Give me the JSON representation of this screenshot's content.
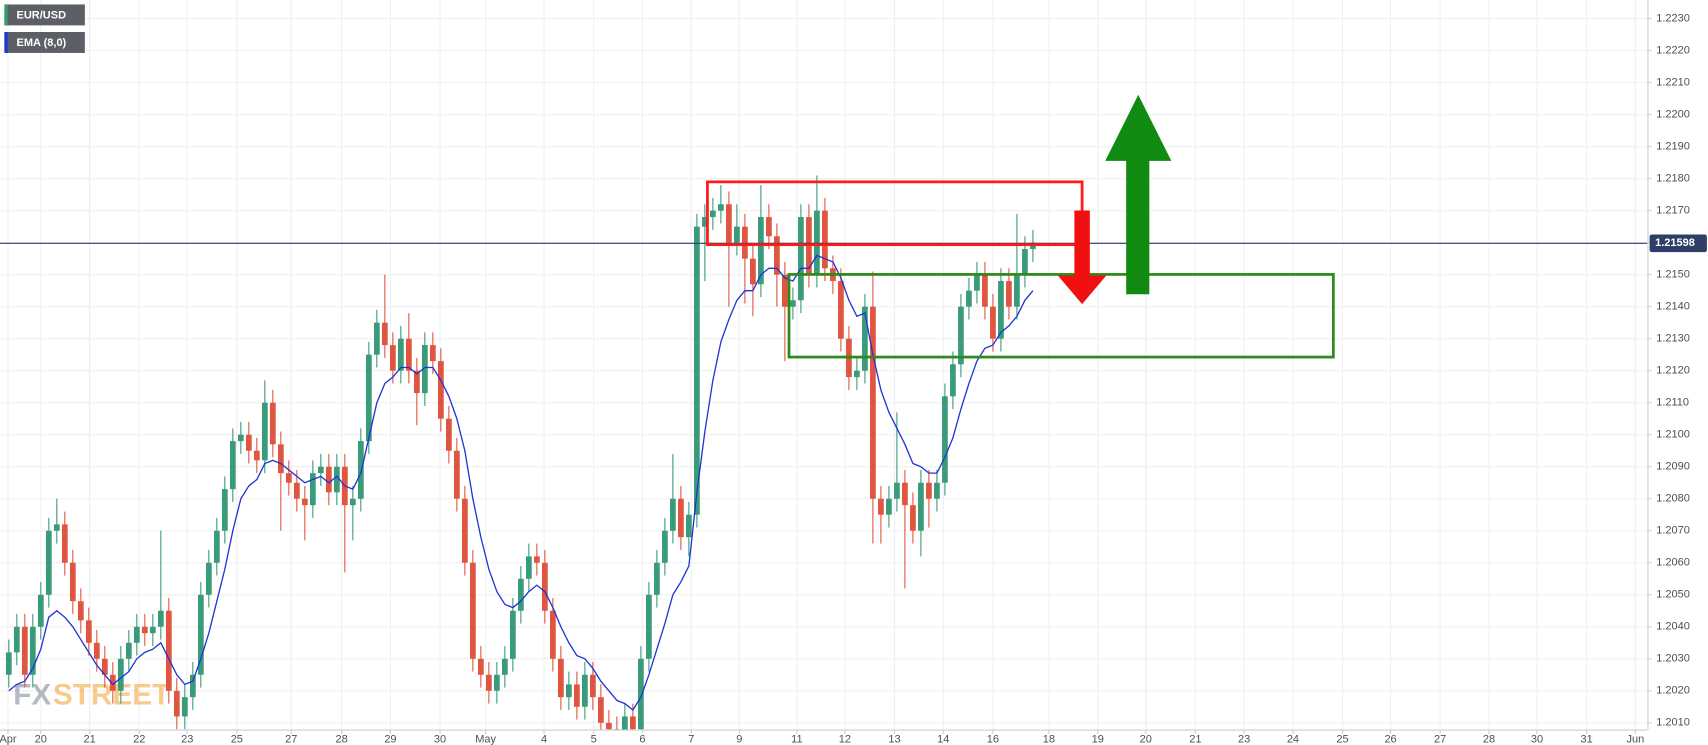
{
  "chart_data": {
    "type": "candlestick",
    "watermark": [
      "FX",
      "STREET"
    ],
    "grid": true,
    "last_price": 1.21598,
    "xlim": [
      -1.1,
      204.8
    ],
    "xticks": [
      {
        "value": -0.1,
        "label": "Apr"
      },
      {
        "value": 4.0,
        "label": "20"
      },
      {
        "value": 10.1,
        "label": "21"
      },
      {
        "value": 16.3,
        "label": "22"
      },
      {
        "value": 22.3,
        "label": "23"
      },
      {
        "value": 28.5,
        "label": "25"
      },
      {
        "value": 35.3,
        "label": "27"
      },
      {
        "value": 41.6,
        "label": "28"
      },
      {
        "value": 47.7,
        "label": "29"
      },
      {
        "value": 53.9,
        "label": "30"
      },
      {
        "value": 59.6,
        "label": "May"
      },
      {
        "value": 66.9,
        "label": "4"
      },
      {
        "value": 73.1,
        "label": "5"
      },
      {
        "value": 79.2,
        "label": "6"
      },
      {
        "value": 85.3,
        "label": "7"
      },
      {
        "value": 91.3,
        "label": "9"
      },
      {
        "value": 98.5,
        "label": "11"
      },
      {
        "value": 104.5,
        "label": "12"
      },
      {
        "value": 110.7,
        "label": "13"
      },
      {
        "value": 116.8,
        "label": "14"
      },
      {
        "value": 123.0,
        "label": "16"
      },
      {
        "value": 130.0,
        "label": "18"
      },
      {
        "value": 136.1,
        "label": "19"
      },
      {
        "value": 142.1,
        "label": "20"
      },
      {
        "value": 148.3,
        "label": "21"
      },
      {
        "value": 154.4,
        "label": "23"
      },
      {
        "value": 160.5,
        "label": "24"
      },
      {
        "value": 166.7,
        "label": "25"
      },
      {
        "value": 172.7,
        "label": "26"
      },
      {
        "value": 178.9,
        "label": "27"
      },
      {
        "value": 185.0,
        "label": "28"
      },
      {
        "value": 191.0,
        "label": "30"
      },
      {
        "value": 197.2,
        "label": "31"
      },
      {
        "value": 203.3,
        "label": "Jun"
      }
    ],
    "ylim": [
      1.20079,
      1.22358
    ],
    "yticks": [
      {
        "value": 1.201,
        "label": "1.2010"
      },
      {
        "value": 1.202,
        "label": "1.2020"
      },
      {
        "value": 1.203,
        "label": "1.2030"
      },
      {
        "value": 1.204,
        "label": "1.2040"
      },
      {
        "value": 1.205,
        "label": "1.2050"
      },
      {
        "value": 1.206,
        "label": "1.2060"
      },
      {
        "value": 1.207,
        "label": "1.2070"
      },
      {
        "value": 1.208,
        "label": "1.2080"
      },
      {
        "value": 1.209,
        "label": "1.2090"
      },
      {
        "value": 1.21,
        "label": "1.2100"
      },
      {
        "value": 1.211,
        "label": "1.2110"
      },
      {
        "value": 1.212,
        "label": "1.2120"
      },
      {
        "value": 1.213,
        "label": "1.2130"
      },
      {
        "value": 1.214,
        "label": "1.2140"
      },
      {
        "value": 1.215,
        "label": "1.2150"
      },
      {
        "value": 1.216,
        "label": "1.2160"
      },
      {
        "value": 1.217,
        "label": "1.2170"
      },
      {
        "value": 1.218,
        "label": "1.2180"
      },
      {
        "value": 1.219,
        "label": "1.2190"
      },
      {
        "value": 1.22,
        "label": "1.2200"
      },
      {
        "value": 1.221,
        "label": "1.2210"
      },
      {
        "value": 1.222,
        "label": "1.2220"
      },
      {
        "value": 1.223,
        "label": "1.2230"
      }
    ],
    "x": [
      0,
      1,
      2,
      3,
      4,
      5,
      6,
      7,
      8,
      9,
      10,
      11,
      12,
      13,
      14,
      15,
      16,
      17,
      18,
      19,
      20,
      21,
      22,
      23,
      24,
      25,
      26,
      27,
      28,
      29,
      30,
      31,
      32,
      33,
      34,
      35,
      36,
      37,
      38,
      39,
      40,
      41,
      42,
      43,
      44,
      45,
      46,
      47,
      48,
      49,
      50,
      51,
      52,
      53,
      54,
      55,
      56,
      57,
      58,
      59,
      60,
      61,
      62,
      63,
      64,
      65,
      66,
      67,
      68,
      69,
      70,
      71,
      72,
      73,
      74,
      75,
      76,
      77,
      78,
      79,
      80,
      81,
      82,
      83,
      84,
      85,
      86,
      87,
      88,
      89,
      90,
      91,
      92,
      93,
      94,
      95,
      96,
      97,
      98,
      99,
      100,
      101,
      102,
      103,
      104,
      105,
      106,
      107,
      108,
      109,
      110,
      111,
      112,
      113,
      114,
      115,
      116,
      117,
      118,
      119,
      120,
      121,
      122,
      123,
      124,
      125,
      126,
      127,
      128
    ],
    "series": [
      {
        "name": "EUR/USD",
        "type": "candlestick",
        "legend_color": "#2e9e6e",
        "up_color": "#3a9b7a",
        "down_color": "#e0553f",
        "open": [
          1.2025,
          1.2032,
          1.204,
          1.2025,
          1.204,
          1.205,
          1.207,
          1.2072,
          1.206,
          1.2048,
          1.2042,
          1.2035,
          1.203,
          1.2025,
          1.202,
          1.203,
          1.2035,
          1.204,
          1.2038,
          1.204,
          1.2045,
          1.202,
          1.2012,
          1.2018,
          1.2025,
          1.205,
          1.206,
          1.207,
          1.2083,
          1.2098,
          1.21,
          1.2095,
          1.2092,
          1.211,
          1.2097,
          1.2088,
          1.2085,
          1.208,
          1.2078,
          1.2088,
          1.209,
          1.2082,
          1.209,
          1.2078,
          1.208,
          1.2098,
          1.2125,
          1.2135,
          1.2128,
          1.212,
          1.213,
          1.212,
          1.2113,
          1.2128,
          1.2123,
          1.2105,
          1.2095,
          1.208,
          1.206,
          1.203,
          1.2025,
          1.202,
          1.2025,
          1.203,
          1.2045,
          1.2055,
          1.2062,
          1.206,
          1.2045,
          1.203,
          1.2018,
          1.2022,
          1.2015,
          1.2025,
          1.2018,
          1.201,
          1.2008,
          1.2005,
          1.2012,
          1.2008,
          1.203,
          1.205,
          1.206,
          1.207,
          1.208,
          1.2068,
          1.2075,
          1.2165,
          1.2168,
          1.217,
          1.2172,
          1.216,
          1.2165,
          1.2155,
          1.2147,
          1.2168,
          1.2162,
          1.215,
          1.214,
          1.2142,
          1.2168,
          1.215,
          1.217,
          1.2152,
          1.2148,
          1.213,
          1.2118,
          1.212,
          1.214,
          1.208,
          1.2075,
          1.208,
          1.2085,
          1.2078,
          1.207,
          1.2085,
          1.208,
          1.2085,
          1.2112,
          1.2122,
          1.214,
          1.2145,
          1.215,
          1.214,
          1.213,
          1.2148,
          1.214,
          1.215,
          1.2158
        ],
        "high": [
          1.2036,
          1.2044,
          1.2044,
          1.2044,
          1.2054,
          1.2074,
          1.208,
          1.2076,
          1.2064,
          1.2052,
          1.2046,
          1.2039,
          1.2034,
          1.2029,
          1.2034,
          1.2039,
          1.2044,
          1.2044,
          1.2044,
          1.207,
          1.2049,
          1.2024,
          1.2022,
          1.2029,
          1.2054,
          1.2064,
          1.2074,
          1.2087,
          1.2102,
          1.2104,
          1.2104,
          1.2099,
          1.2117,
          1.2114,
          1.2101,
          1.2092,
          1.2089,
          1.2084,
          1.2092,
          1.2094,
          1.2094,
          1.2094,
          1.2094,
          1.2084,
          1.2102,
          1.2129,
          1.2139,
          1.215,
          1.2132,
          1.2134,
          1.2138,
          1.2124,
          1.2132,
          1.2132,
          1.2127,
          1.2109,
          1.2099,
          1.2084,
          1.2064,
          1.2034,
          1.2029,
          1.2029,
          1.2034,
          1.2049,
          1.2059,
          1.2066,
          1.2066,
          1.2064,
          1.2049,
          1.2034,
          1.2026,
          1.2026,
          1.2029,
          1.2029,
          1.2022,
          1.2014,
          1.2012,
          1.2016,
          1.2016,
          1.2034,
          1.2054,
          1.2064,
          1.2074,
          1.2094,
          1.2084,
          1.2079,
          1.2169,
          1.2172,
          1.2174,
          1.2178,
          1.2176,
          1.2172,
          1.2169,
          1.2159,
          1.2178,
          1.2172,
          1.2166,
          1.2154,
          1.2146,
          1.2172,
          1.2172,
          1.2181,
          1.2174,
          1.2156,
          1.2152,
          1.2134,
          1.2124,
          1.2144,
          1.2151,
          1.2084,
          1.2084,
          1.2107,
          1.2089,
          1.2082,
          1.2089,
          1.2089,
          1.2089,
          1.2116,
          1.2126,
          1.2144,
          1.2149,
          1.2154,
          1.2154,
          1.2144,
          1.2152,
          1.2152,
          1.2169,
          1.2162,
          1.2164
        ],
        "low": [
          1.2021,
          1.2028,
          1.2021,
          1.2021,
          1.2036,
          1.2046,
          1.2066,
          1.2056,
          1.2044,
          1.2038,
          1.2031,
          1.2026,
          1.2021,
          1.2016,
          1.2016,
          1.2026,
          1.2031,
          1.2034,
          1.2034,
          1.2036,
          1.2016,
          1.2008,
          1.2008,
          1.2014,
          1.2021,
          1.2046,
          1.2056,
          1.2066,
          1.2079,
          1.2094,
          1.2091,
          1.2088,
          1.2088,
          1.2093,
          1.207,
          1.2081,
          1.2076,
          1.2067,
          1.2074,
          1.2084,
          1.2078,
          1.2078,
          1.2057,
          1.2067,
          1.2076,
          1.2094,
          1.2121,
          1.2124,
          1.2116,
          1.2116,
          1.2116,
          1.2103,
          1.2109,
          1.2119,
          1.2101,
          1.2091,
          1.2076,
          1.2056,
          1.2026,
          1.2021,
          1.2016,
          1.2016,
          1.2021,
          1.2026,
          1.2041,
          1.2051,
          1.2056,
          1.2041,
          1.2026,
          1.2014,
          1.2014,
          1.2011,
          1.2011,
          1.2014,
          1.2006,
          1.2004,
          1.2001,
          1.2001,
          1.2004,
          1.2004,
          1.2026,
          1.2046,
          1.2056,
          1.2066,
          1.2064,
          1.2062,
          1.2071,
          1.2148,
          1.2164,
          1.2166,
          1.214,
          1.2156,
          1.2141,
          1.2137,
          1.2143,
          1.2158,
          1.214,
          1.2123,
          1.2136,
          1.2138,
          1.2146,
          1.2146,
          1.2148,
          1.2144,
          1.2126,
          1.2114,
          1.2114,
          1.2116,
          1.2066,
          1.2066,
          1.2071,
          1.2076,
          1.2052,
          1.2066,
          1.2062,
          1.2071,
          1.2076,
          1.2081,
          1.2108,
          1.2118,
          1.2136,
          1.2141,
          1.2136,
          1.2126,
          1.2126,
          1.2136,
          1.2136,
          1.2146,
          1.2154
        ],
        "close": [
          1.2032,
          1.204,
          1.2025,
          1.204,
          1.205,
          1.207,
          1.2072,
          1.206,
          1.2048,
          1.2042,
          1.2035,
          1.203,
          1.2025,
          1.202,
          1.203,
          1.2035,
          1.204,
          1.2038,
          1.204,
          1.2045,
          1.202,
          1.2012,
          1.2018,
          1.2025,
          1.205,
          1.206,
          1.207,
          1.2083,
          1.2098,
          1.21,
          1.2095,
          1.2092,
          1.211,
          1.2097,
          1.2088,
          1.2085,
          1.208,
          1.2078,
          1.2088,
          1.209,
          1.2082,
          1.209,
          1.2078,
          1.208,
          1.2098,
          1.2125,
          1.2135,
          1.2128,
          1.212,
          1.213,
          1.212,
          1.2113,
          1.2128,
          1.2123,
          1.2105,
          1.2095,
          1.208,
          1.206,
          1.203,
          1.2025,
          1.202,
          1.2025,
          1.203,
          1.2045,
          1.2055,
          1.2062,
          1.206,
          1.2045,
          1.203,
          1.2018,
          1.2022,
          1.2015,
          1.2025,
          1.2018,
          1.201,
          1.2008,
          1.2005,
          1.2012,
          1.2008,
          1.203,
          1.205,
          1.206,
          1.207,
          1.208,
          1.2068,
          1.2075,
          1.2165,
          1.2168,
          1.217,
          1.2172,
          1.216,
          1.2165,
          1.2155,
          1.2147,
          1.2168,
          1.2162,
          1.215,
          1.214,
          1.2142,
          1.2168,
          1.215,
          1.217,
          1.2152,
          1.2148,
          1.213,
          1.2118,
          1.212,
          1.214,
          1.208,
          1.2075,
          1.208,
          1.2085,
          1.2078,
          1.207,
          1.2085,
          1.208,
          1.2085,
          1.2112,
          1.2122,
          1.214,
          1.2145,
          1.215,
          1.214,
          1.213,
          1.2148,
          1.214,
          1.215,
          1.2158,
          1.216
        ]
      },
      {
        "name": "EMA (8,0)",
        "type": "line",
        "color": "#1f35d6",
        "values": [
          1.202,
          1.2022,
          1.2023,
          1.2027,
          1.2033,
          1.2043,
          1.2045,
          1.2043,
          1.204,
          1.2036,
          1.2032,
          1.2028,
          1.2025,
          1.2022,
          1.2024,
          1.2026,
          1.203,
          1.2032,
          1.2033,
          1.2035,
          1.203,
          1.2025,
          1.2022,
          1.2023,
          1.203,
          1.2038,
          1.2048,
          1.2058,
          1.207,
          1.208,
          1.2084,
          1.2086,
          1.2091,
          1.2092,
          1.2091,
          1.2089,
          1.2087,
          1.2085,
          1.2086,
          1.2087,
          1.2085,
          1.2087,
          1.2084,
          1.2083,
          1.2088,
          1.2099,
          1.211,
          1.2116,
          1.2118,
          1.2121,
          1.2121,
          1.2119,
          1.2121,
          1.2121,
          1.2117,
          1.2112,
          1.2105,
          1.2095,
          1.208,
          1.2068,
          1.2058,
          1.2051,
          1.2047,
          1.2046,
          1.2048,
          1.2051,
          1.2053,
          1.2051,
          1.2046,
          1.204,
          1.2035,
          1.2031,
          1.203,
          1.2027,
          1.2023,
          1.202,
          1.2017,
          1.2016,
          1.2014,
          1.2018,
          1.2025,
          1.2033,
          1.2041,
          1.205,
          1.2054,
          1.2059,
          1.2082,
          1.2101,
          1.2117,
          1.2129,
          1.2136,
          1.2142,
          1.2145,
          1.2145,
          1.215,
          1.2152,
          1.2152,
          1.2149,
          1.2148,
          1.2152,
          1.2152,
          1.2156,
          1.2155,
          1.2154,
          1.2149,
          1.2142,
          1.2137,
          1.2138,
          1.2125,
          1.2114,
          1.2107,
          1.2102,
          1.2097,
          1.2091,
          1.209,
          1.2088,
          1.2088,
          1.2093,
          1.2099,
          1.2108,
          1.2116,
          1.2123,
          1.2127,
          1.2128,
          1.2132,
          1.2134,
          1.2137,
          1.2142,
          1.2145
        ]
      }
    ]
  }
}
